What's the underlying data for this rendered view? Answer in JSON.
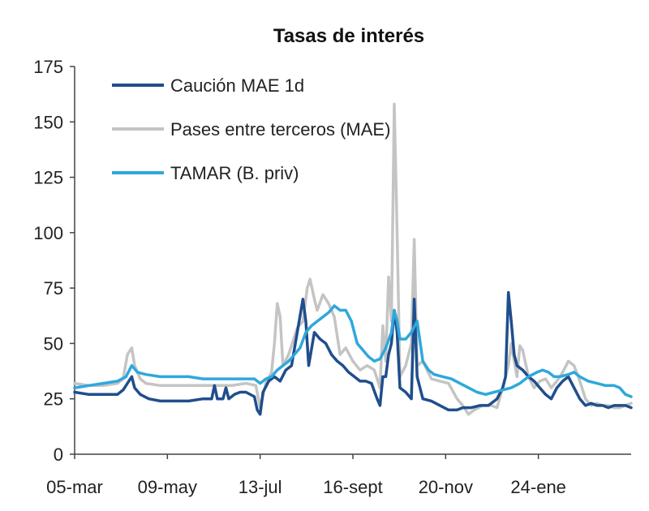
{
  "chart_data": {
    "type": "line",
    "title": "Tasas de interés",
    "xlabel": "",
    "ylabel": "",
    "ylim": [
      0,
      175
    ],
    "yticks": [
      0,
      25,
      50,
      75,
      100,
      125,
      150,
      175
    ],
    "x_tick_labels": [
      "05-mar",
      "09-may",
      "13-jul",
      "16-sept",
      "20-nov",
      "24-ene"
    ],
    "x_tick_positions": [
      0,
      65,
      130,
      195,
      260,
      325
    ],
    "x_max": 390,
    "grid": false,
    "legend_position": "top-left",
    "colors": {
      "caucion": "#1f4e8c",
      "pases": "#c4c4c4",
      "tamar": "#2ea8dc"
    },
    "series": [
      {
        "name": "Pases entre terceros (MAE)",
        "color": "#c4c4c4",
        "points": [
          [
            0,
            32
          ],
          [
            10,
            31
          ],
          [
            20,
            31
          ],
          [
            30,
            32
          ],
          [
            34,
            34
          ],
          [
            37,
            45
          ],
          [
            40,
            48
          ],
          [
            42,
            40
          ],
          [
            46,
            34
          ],
          [
            50,
            32
          ],
          [
            60,
            31
          ],
          [
            70,
            31
          ],
          [
            80,
            31
          ],
          [
            90,
            31
          ],
          [
            100,
            31
          ],
          [
            110,
            31
          ],
          [
            120,
            32
          ],
          [
            127,
            31
          ],
          [
            130,
            21
          ],
          [
            134,
            32
          ],
          [
            138,
            37
          ],
          [
            140,
            50
          ],
          [
            142,
            68
          ],
          [
            144,
            62
          ],
          [
            146,
            40
          ],
          [
            150,
            45
          ],
          [
            156,
            57
          ],
          [
            160,
            60
          ],
          [
            163,
            75
          ],
          [
            165,
            79
          ],
          [
            168,
            70
          ],
          [
            170,
            65
          ],
          [
            174,
            72
          ],
          [
            178,
            68
          ],
          [
            182,
            62
          ],
          [
            186,
            45
          ],
          [
            190,
            48
          ],
          [
            195,
            42
          ],
          [
            200,
            38
          ],
          [
            205,
            40
          ],
          [
            210,
            38
          ],
          [
            214,
            30
          ],
          [
            216,
            58
          ],
          [
            218,
            42
          ],
          [
            220,
            80
          ],
          [
            222,
            60
          ],
          [
            224,
            158
          ],
          [
            226,
            100
          ],
          [
            228,
            35
          ],
          [
            232,
            40
          ],
          [
            236,
            50
          ],
          [
            238,
            97
          ],
          [
            240,
            40
          ],
          [
            244,
            42
          ],
          [
            250,
            34
          ],
          [
            256,
            33
          ],
          [
            262,
            32
          ],
          [
            268,
            25
          ],
          [
            272,
            22
          ],
          [
            276,
            18
          ],
          [
            280,
            20
          ],
          [
            286,
            22
          ],
          [
            292,
            22
          ],
          [
            296,
            21
          ],
          [
            300,
            30
          ],
          [
            304,
            40
          ],
          [
            306,
            50
          ],
          [
            308,
            42
          ],
          [
            310,
            35
          ],
          [
            312,
            49
          ],
          [
            314,
            47
          ],
          [
            318,
            35
          ],
          [
            322,
            30
          ],
          [
            326,
            33
          ],
          [
            330,
            34
          ],
          [
            334,
            30
          ],
          [
            338,
            33
          ],
          [
            342,
            37
          ],
          [
            346,
            42
          ],
          [
            350,
            40
          ],
          [
            354,
            33
          ],
          [
            358,
            25
          ],
          [
            362,
            22
          ],
          [
            366,
            23
          ],
          [
            370,
            22
          ],
          [
            374,
            22
          ],
          [
            378,
            21
          ],
          [
            382,
            21
          ],
          [
            386,
            22
          ],
          [
            390,
            23
          ]
        ]
      },
      {
        "name": "Caución MAE 1d",
        "color": "#1f4e8c",
        "points": [
          [
            0,
            28
          ],
          [
            10,
            27
          ],
          [
            20,
            27
          ],
          [
            30,
            27
          ],
          [
            34,
            29
          ],
          [
            38,
            33
          ],
          [
            40,
            35
          ],
          [
            42,
            30
          ],
          [
            46,
            27
          ],
          [
            52,
            25
          ],
          [
            60,
            24
          ],
          [
            70,
            24
          ],
          [
            80,
            24
          ],
          [
            90,
            25
          ],
          [
            96,
            25
          ],
          [
            98,
            31
          ],
          [
            100,
            25
          ],
          [
            104,
            25
          ],
          [
            106,
            30
          ],
          [
            108,
            25
          ],
          [
            112,
            27
          ],
          [
            116,
            28
          ],
          [
            120,
            28
          ],
          [
            126,
            26
          ],
          [
            128,
            20
          ],
          [
            130,
            18
          ],
          [
            132,
            28
          ],
          [
            136,
            33
          ],
          [
            140,
            35
          ],
          [
            144,
            33
          ],
          [
            148,
            38
          ],
          [
            152,
            40
          ],
          [
            156,
            55
          ],
          [
            160,
            70
          ],
          [
            162,
            60
          ],
          [
            164,
            40
          ],
          [
            168,
            55
          ],
          [
            172,
            52
          ],
          [
            176,
            50
          ],
          [
            180,
            45
          ],
          [
            184,
            42
          ],
          [
            188,
            40
          ],
          [
            192,
            37
          ],
          [
            196,
            35
          ],
          [
            200,
            33
          ],
          [
            204,
            33
          ],
          [
            208,
            32
          ],
          [
            212,
            25
          ],
          [
            214,
            22
          ],
          [
            216,
            35
          ],
          [
            218,
            35
          ],
          [
            220,
            45
          ],
          [
            222,
            50
          ],
          [
            224,
            65
          ],
          [
            226,
            55
          ],
          [
            228,
            30
          ],
          [
            232,
            28
          ],
          [
            236,
            25
          ],
          [
            238,
            70
          ],
          [
            240,
            35
          ],
          [
            244,
            25
          ],
          [
            250,
            24
          ],
          [
            256,
            22
          ],
          [
            262,
            20
          ],
          [
            268,
            20
          ],
          [
            272,
            21
          ],
          [
            278,
            21
          ],
          [
            284,
            22
          ],
          [
            290,
            22
          ],
          [
            296,
            25
          ],
          [
            300,
            30
          ],
          [
            302,
            35
          ],
          [
            304,
            73
          ],
          [
            306,
            60
          ],
          [
            308,
            45
          ],
          [
            310,
            40
          ],
          [
            314,
            38
          ],
          [
            318,
            35
          ],
          [
            322,
            33
          ],
          [
            326,
            30
          ],
          [
            330,
            27
          ],
          [
            334,
            25
          ],
          [
            338,
            30
          ],
          [
            342,
            33
          ],
          [
            346,
            35
          ],
          [
            350,
            30
          ],
          [
            354,
            25
          ],
          [
            358,
            22
          ],
          [
            362,
            23
          ],
          [
            366,
            22
          ],
          [
            370,
            22
          ],
          [
            374,
            21
          ],
          [
            378,
            22
          ],
          [
            382,
            22
          ],
          [
            386,
            22
          ],
          [
            390,
            21
          ]
        ]
      },
      {
        "name": "TAMAR (B. priv)",
        "color": "#2ea8dc",
        "points": [
          [
            0,
            30
          ],
          [
            10,
            31
          ],
          [
            20,
            32
          ],
          [
            30,
            33
          ],
          [
            36,
            35
          ],
          [
            40,
            40
          ],
          [
            44,
            37
          ],
          [
            50,
            36
          ],
          [
            60,
            35
          ],
          [
            70,
            35
          ],
          [
            80,
            35
          ],
          [
            90,
            34
          ],
          [
            100,
            34
          ],
          [
            110,
            34
          ],
          [
            120,
            34
          ],
          [
            126,
            34
          ],
          [
            130,
            32
          ],
          [
            134,
            34
          ],
          [
            138,
            35
          ],
          [
            142,
            38
          ],
          [
            146,
            40
          ],
          [
            150,
            42
          ],
          [
            154,
            45
          ],
          [
            158,
            48
          ],
          [
            162,
            55
          ],
          [
            166,
            58
          ],
          [
            170,
            60
          ],
          [
            174,
            62
          ],
          [
            178,
            64
          ],
          [
            182,
            67
          ],
          [
            186,
            65
          ],
          [
            190,
            65
          ],
          [
            194,
            60
          ],
          [
            198,
            50
          ],
          [
            202,
            47
          ],
          [
            206,
            44
          ],
          [
            210,
            42
          ],
          [
            214,
            43
          ],
          [
            218,
            48
          ],
          [
            222,
            55
          ],
          [
            224,
            65
          ],
          [
            226,
            60
          ],
          [
            228,
            52
          ],
          [
            232,
            52
          ],
          [
            236,
            55
          ],
          [
            240,
            60
          ],
          [
            244,
            42
          ],
          [
            248,
            38
          ],
          [
            252,
            36
          ],
          [
            258,
            35
          ],
          [
            264,
            34
          ],
          [
            270,
            32
          ],
          [
            276,
            30
          ],
          [
            282,
            28
          ],
          [
            288,
            27
          ],
          [
            294,
            28
          ],
          [
            300,
            29
          ],
          [
            306,
            30
          ],
          [
            312,
            32
          ],
          [
            318,
            35
          ],
          [
            324,
            37
          ],
          [
            328,
            38
          ],
          [
            332,
            37
          ],
          [
            336,
            35
          ],
          [
            340,
            35
          ],
          [
            346,
            36
          ],
          [
            350,
            37
          ],
          [
            354,
            35
          ],
          [
            360,
            33
          ],
          [
            366,
            32
          ],
          [
            372,
            31
          ],
          [
            378,
            31
          ],
          [
            382,
            30
          ],
          [
            386,
            27
          ],
          [
            390,
            26
          ]
        ]
      }
    ],
    "legend_order": [
      "Caución MAE 1d",
      "Pases entre terceros (MAE)",
      "TAMAR (B. priv)"
    ]
  }
}
